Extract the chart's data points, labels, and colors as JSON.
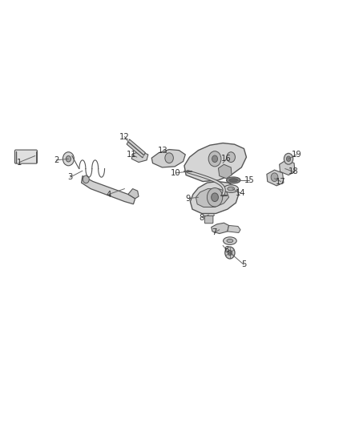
{
  "bg_color": "#ffffff",
  "line_color": "#555555",
  "label_color": "#333333",
  "label_positions": {
    "1": [
      0.055,
      0.62,
      0.1,
      0.635
    ],
    "2": [
      0.16,
      0.625,
      0.195,
      0.628
    ],
    "3": [
      0.2,
      0.585,
      0.235,
      0.6
    ],
    "4": [
      0.31,
      0.545,
      0.355,
      0.558
    ],
    "5": [
      0.695,
      0.38,
      0.66,
      0.405
    ],
    "6": [
      0.645,
      0.415,
      0.635,
      0.425
    ],
    "7": [
      0.61,
      0.455,
      0.625,
      0.462
    ],
    "8": [
      0.575,
      0.49,
      0.595,
      0.497
    ],
    "9": [
      0.535,
      0.535,
      0.565,
      0.538
    ],
    "10": [
      0.5,
      0.595,
      0.535,
      0.598
    ],
    "11": [
      0.375,
      0.638,
      0.39,
      0.632
    ],
    "12": [
      0.355,
      0.68,
      0.365,
      0.668
    ],
    "13": [
      0.465,
      0.648,
      0.475,
      0.642
    ],
    "14": [
      0.685,
      0.548,
      0.662,
      0.558
    ],
    "15": [
      0.71,
      0.578,
      0.672,
      0.578
    ],
    "16": [
      0.645,
      0.628,
      0.635,
      0.618
    ],
    "17": [
      0.8,
      0.575,
      0.782,
      0.582
    ],
    "18": [
      0.835,
      0.598,
      0.812,
      0.605
    ],
    "19": [
      0.845,
      0.638,
      0.822,
      0.628
    ]
  }
}
